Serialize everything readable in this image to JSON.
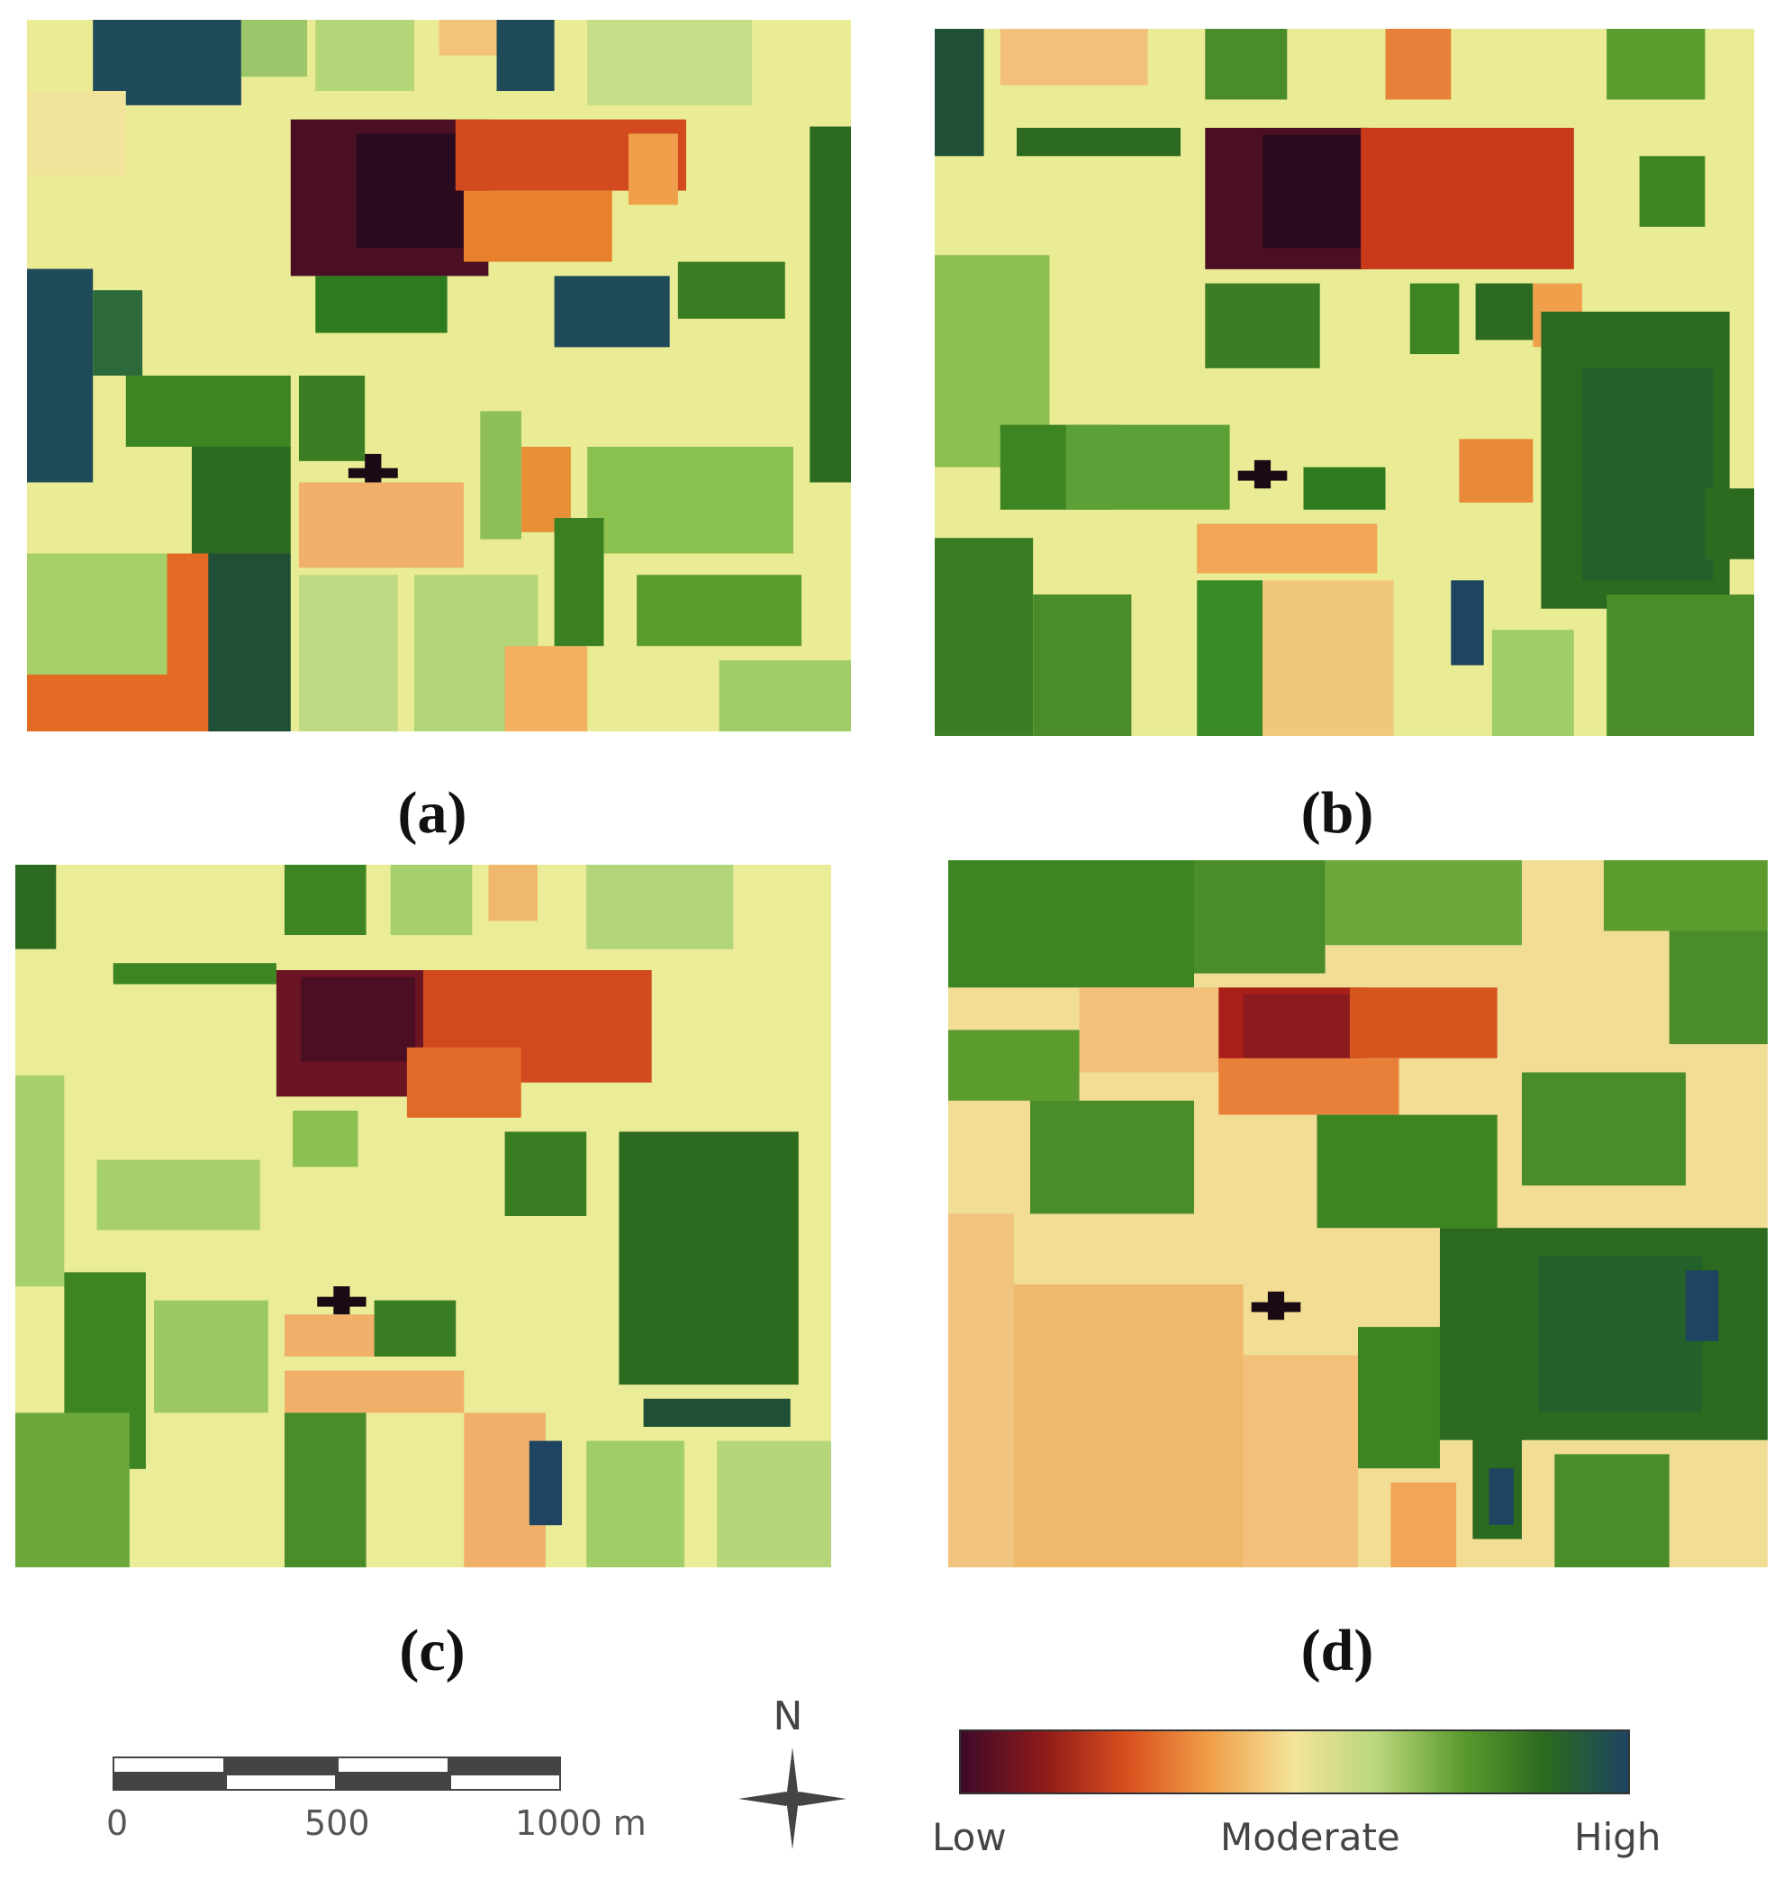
{
  "panels": [
    {
      "id": "a",
      "caption": "(a)"
    },
    {
      "id": "b",
      "caption": "(b)"
    },
    {
      "id": "c",
      "caption": "(c)"
    },
    {
      "id": "d",
      "caption": "(d)"
    }
  ],
  "scale_bar": {
    "ticks": [
      "0",
      "500",
      "1000 m"
    ]
  },
  "north_arrow": {
    "label": "N"
  },
  "legend": {
    "low_label": "Low",
    "moderate_label": "Moderate",
    "high_label": "High",
    "colors": [
      "#3d0a2a",
      "#8f1a1a",
      "#d9501e",
      "#f0a04a",
      "#f3e49a",
      "#b8d67a",
      "#5c9b2e",
      "#2b6a1f",
      "#1e4461"
    ]
  }
}
